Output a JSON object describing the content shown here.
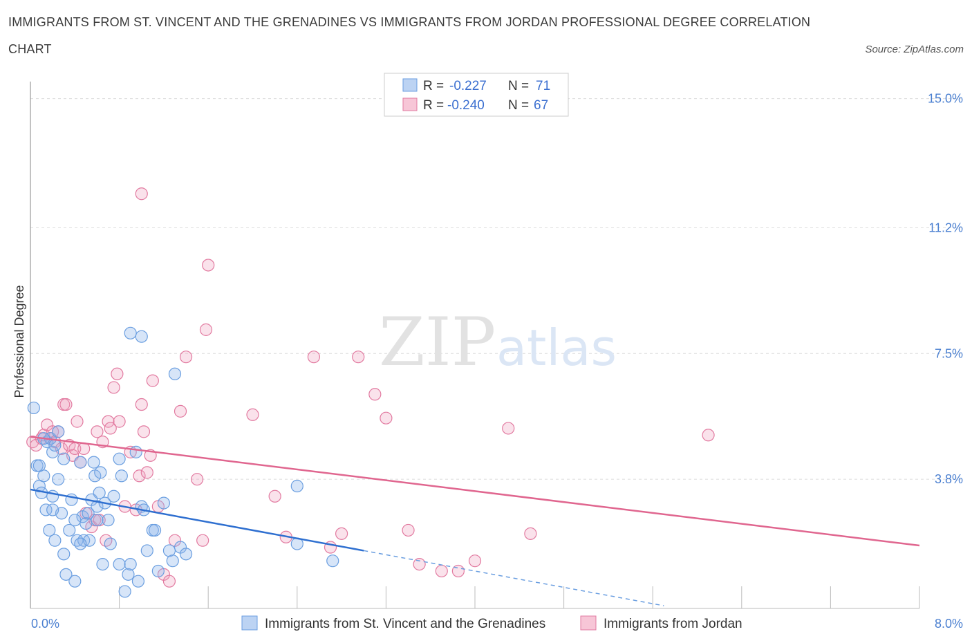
{
  "chart_data": {
    "type": "scatter",
    "title_line1": "IMMIGRANTS FROM ST. VINCENT AND THE GRENADINES VS IMMIGRANTS FROM JORDAN PROFESSIONAL DEGREE CORRELATION",
    "title_line2": "CHART",
    "source": "Source: ZipAtlas.com",
    "ylabel": "Professional Degree",
    "xlim": [
      0,
      8
    ],
    "ylim": [
      0,
      15.5
    ],
    "x_tick_labels": {
      "left": "0.0%",
      "right": "8.0%"
    },
    "y_ticks": [
      {
        "value": 3.8,
        "label": "3.8%"
      },
      {
        "value": 7.5,
        "label": "7.5%"
      },
      {
        "value": 11.2,
        "label": "11.2%"
      },
      {
        "value": 15.0,
        "label": "15.0%"
      }
    ],
    "legend": {
      "blue": {
        "r_label": "R =",
        "r_value": "-0.227",
        "n_label": "N =",
        "n_value": "71"
      },
      "pink": {
        "r_label": "R =",
        "r_value": "-0.240",
        "n_label": "N =",
        "n_value": "67"
      }
    },
    "watermark": {
      "zip": "ZIP",
      "atlas": "atlas"
    },
    "series": [
      {
        "name": "Immigrants from St. Vincent and the Grenadines",
        "color": "#6a9ee0",
        "fill": "rgba(140,180,235,0.35)",
        "trend": {
          "x0": 0.0,
          "y0": 3.5,
          "x1": 3.0,
          "y1": 1.7,
          "dash_x_end": 5.7
        },
        "points": [
          [
            0.03,
            5.9
          ],
          [
            0.06,
            4.2
          ],
          [
            0.08,
            3.6
          ],
          [
            0.1,
            3.4
          ],
          [
            0.12,
            3.9
          ],
          [
            0.15,
            4.9
          ],
          [
            0.18,
            5.0
          ],
          [
            0.2,
            4.6
          ],
          [
            0.22,
            4.8
          ],
          [
            0.25,
            5.2
          ],
          [
            0.08,
            4.2
          ],
          [
            0.14,
            2.9
          ],
          [
            0.17,
            2.3
          ],
          [
            0.2,
            3.3
          ],
          [
            0.22,
            2.0
          ],
          [
            0.25,
            3.8
          ],
          [
            0.28,
            2.8
          ],
          [
            0.3,
            1.6
          ],
          [
            0.32,
            1.0
          ],
          [
            0.35,
            2.3
          ],
          [
            0.37,
            3.2
          ],
          [
            0.4,
            0.8
          ],
          [
            0.42,
            2.0
          ],
          [
            0.45,
            4.3
          ],
          [
            0.47,
            2.7
          ],
          [
            0.48,
            2.0
          ],
          [
            0.5,
            2.5
          ],
          [
            0.52,
            2.8
          ],
          [
            0.53,
            2.0
          ],
          [
            0.55,
            3.2
          ],
          [
            0.57,
            4.3
          ],
          [
            0.58,
            3.9
          ],
          [
            0.6,
            3.0
          ],
          [
            0.62,
            3.4
          ],
          [
            0.63,
            4.0
          ],
          [
            0.65,
            1.3
          ],
          [
            0.67,
            3.1
          ],
          [
            0.7,
            2.6
          ],
          [
            0.72,
            1.9
          ],
          [
            0.75,
            3.3
          ],
          [
            0.8,
            1.3
          ],
          [
            0.82,
            3.9
          ],
          [
            0.85,
            0.5
          ],
          [
            0.88,
            1.0
          ],
          [
            0.9,
            1.3
          ],
          [
            0.95,
            4.6
          ],
          [
            0.97,
            0.8
          ],
          [
            1.0,
            3.0
          ],
          [
            1.02,
            2.9
          ],
          [
            1.05,
            1.7
          ],
          [
            1.1,
            2.3
          ],
          [
            1.12,
            2.3
          ],
          [
            1.15,
            1.1
          ],
          [
            1.2,
            3.1
          ],
          [
            1.25,
            1.7
          ],
          [
            1.3,
            6.9
          ],
          [
            1.35,
            1.8
          ],
          [
            1.4,
            1.6
          ],
          [
            1.0,
            8.0
          ],
          [
            0.9,
            8.1
          ],
          [
            0.8,
            4.4
          ],
          [
            0.12,
            5.0
          ],
          [
            0.3,
            4.4
          ],
          [
            0.2,
            2.9
          ],
          [
            0.4,
            2.6
          ],
          [
            0.45,
            1.9
          ],
          [
            0.6,
            2.6
          ],
          [
            1.28,
            1.4
          ],
          [
            2.4,
            3.6
          ],
          [
            2.4,
            1.9
          ],
          [
            2.72,
            1.4
          ]
        ]
      },
      {
        "name": "Immigrants from Jordan",
        "color": "#e27aa0",
        "fill": "rgba(240,160,190,0.3)",
        "trend": {
          "x0": 0.0,
          "y0": 5.05,
          "x1": 8.0,
          "y1": 1.85
        },
        "points": [
          [
            0.02,
            4.9
          ],
          [
            0.05,
            4.8
          ],
          [
            0.1,
            5.0
          ],
          [
            0.12,
            5.1
          ],
          [
            0.15,
            5.4
          ],
          [
            0.18,
            5.0
          ],
          [
            0.2,
            5.2
          ],
          [
            0.22,
            4.9
          ],
          [
            0.25,
            5.2
          ],
          [
            0.28,
            4.7
          ],
          [
            0.3,
            6.0
          ],
          [
            0.32,
            6.0
          ],
          [
            0.35,
            4.8
          ],
          [
            0.38,
            4.5
          ],
          [
            0.4,
            4.7
          ],
          [
            0.42,
            5.5
          ],
          [
            0.45,
            4.3
          ],
          [
            0.48,
            4.7
          ],
          [
            0.5,
            2.8
          ],
          [
            0.55,
            2.4
          ],
          [
            0.58,
            2.6
          ],
          [
            0.6,
            5.2
          ],
          [
            0.62,
            2.6
          ],
          [
            0.65,
            4.9
          ],
          [
            0.68,
            2.0
          ],
          [
            0.7,
            5.5
          ],
          [
            0.72,
            5.3
          ],
          [
            0.75,
            6.5
          ],
          [
            0.78,
            6.9
          ],
          [
            0.8,
            5.5
          ],
          [
            0.85,
            3.0
          ],
          [
            0.9,
            4.6
          ],
          [
            0.95,
            2.9
          ],
          [
            0.98,
            3.9
          ],
          [
            1.0,
            6.0
          ],
          [
            1.02,
            5.2
          ],
          [
            1.05,
            4.0
          ],
          [
            1.08,
            4.5
          ],
          [
            1.1,
            6.7
          ],
          [
            1.15,
            3.0
          ],
          [
            1.2,
            1.0
          ],
          [
            1.25,
            0.8
          ],
          [
            1.3,
            2.0
          ],
          [
            1.35,
            5.8
          ],
          [
            1.4,
            7.4
          ],
          [
            1.5,
            3.8
          ],
          [
            1.55,
            2.0
          ],
          [
            1.0,
            12.2
          ],
          [
            1.6,
            10.1
          ],
          [
            1.58,
            8.2
          ],
          [
            2.0,
            5.7
          ],
          [
            2.2,
            3.3
          ],
          [
            2.3,
            2.1
          ],
          [
            2.55,
            7.4
          ],
          [
            2.7,
            1.8
          ],
          [
            2.8,
            2.2
          ],
          [
            2.95,
            7.4
          ],
          [
            3.1,
            6.3
          ],
          [
            3.2,
            5.6
          ],
          [
            3.5,
            1.3
          ],
          [
            3.7,
            1.1
          ],
          [
            3.85,
            1.1
          ],
          [
            4.0,
            1.4
          ],
          [
            4.3,
            5.3
          ],
          [
            4.5,
            2.2
          ],
          [
            6.1,
            5.1
          ],
          [
            3.4,
            2.3
          ]
        ]
      }
    ]
  }
}
